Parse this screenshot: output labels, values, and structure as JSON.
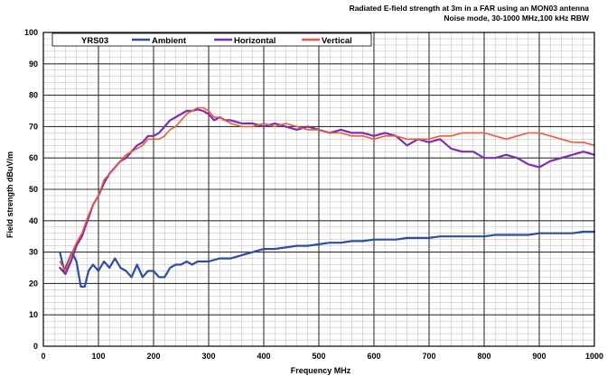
{
  "chart_data": {
    "type": "line",
    "title": "Radiated E-field strength at 3m in a FAR using an MON03 antenna",
    "subtitle": "Noise mode, 30-1000 MHz,100 kHz RBW",
    "xlabel": "Frequency MHz",
    "ylabel": "Field strength dBuV/m",
    "xlim": [
      0,
      1000
    ],
    "ylim": [
      0,
      100
    ],
    "x_ticks": [
      "0",
      "100",
      "200",
      "300",
      "400",
      "500",
      "600",
      "700",
      "800",
      "900",
      "1000"
    ],
    "y_ticks": [
      "0",
      "10",
      "20",
      "30",
      "40",
      "50",
      "60",
      "70",
      "80",
      "90",
      "100"
    ],
    "grid": true,
    "legend_position": "top",
    "legend_label": "YRS03",
    "series": [
      {
        "name": "Ambient",
        "color": "#2b4fa3",
        "x": [
          30,
          38,
          45,
          52,
          60,
          68,
          75,
          82,
          90,
          100,
          110,
          120,
          130,
          140,
          150,
          160,
          170,
          180,
          190,
          200,
          210,
          220,
          230,
          240,
          250,
          260,
          270,
          280,
          290,
          300,
          320,
          340,
          360,
          380,
          400,
          420,
          440,
          460,
          480,
          500,
          520,
          540,
          560,
          580,
          600,
          620,
          640,
          660,
          680,
          700,
          720,
          740,
          760,
          780,
          800,
          820,
          840,
          860,
          880,
          900,
          920,
          940,
          960,
          980,
          1000
        ],
        "y": [
          30,
          24,
          27,
          30,
          27,
          19,
          19,
          24,
          26,
          24,
          27,
          25,
          28,
          25,
          24,
          22,
          26,
          22,
          24,
          24,
          22,
          22,
          25,
          26,
          26,
          27,
          26,
          27,
          27,
          27,
          28,
          28,
          29,
          30,
          31,
          31,
          31.5,
          32,
          32,
          32.5,
          33,
          33,
          33.5,
          33.5,
          34,
          34,
          34,
          34.5,
          34.5,
          34.5,
          35,
          35,
          35,
          35,
          35,
          35.5,
          35.5,
          35.5,
          35.5,
          36,
          36,
          36,
          36,
          36.5,
          36.5
        ]
      },
      {
        "name": "Horizontal",
        "color": "#7b2fb0",
        "x": [
          30,
          40,
          50,
          60,
          70,
          80,
          90,
          100,
          110,
          120,
          130,
          140,
          150,
          160,
          170,
          180,
          190,
          200,
          210,
          220,
          230,
          240,
          250,
          260,
          270,
          280,
          290,
          300,
          310,
          320,
          330,
          340,
          360,
          380,
          400,
          420,
          440,
          460,
          480,
          500,
          520,
          540,
          560,
          580,
          600,
          620,
          640,
          660,
          680,
          700,
          720,
          740,
          760,
          780,
          800,
          820,
          840,
          860,
          880,
          900,
          920,
          940,
          960,
          980,
          1000
        ],
        "y": [
          25,
          23,
          27,
          32,
          35,
          40,
          45,
          48,
          52,
          55,
          57,
          59,
          60,
          62,
          64,
          65,
          67,
          67,
          68,
          70,
          72,
          73,
          74,
          75,
          75,
          75.5,
          75,
          74,
          72,
          73,
          72,
          72,
          71,
          71,
          70,
          71,
          70,
          69,
          70,
          69,
          68,
          69,
          68,
          68,
          67,
          68,
          67,
          64,
          66,
          65,
          66,
          63,
          62,
          62,
          60,
          60,
          61,
          60,
          58,
          57,
          59,
          60,
          61,
          62,
          61
        ]
      },
      {
        "name": "Vertical",
        "color": "#ee5a3a",
        "x": [
          30,
          40,
          50,
          60,
          70,
          80,
          90,
          100,
          110,
          120,
          130,
          140,
          150,
          160,
          170,
          180,
          190,
          200,
          210,
          220,
          230,
          240,
          250,
          260,
          270,
          280,
          290,
          300,
          310,
          320,
          330,
          340,
          360,
          380,
          400,
          420,
          440,
          460,
          480,
          500,
          520,
          540,
          560,
          580,
          600,
          620,
          640,
          660,
          680,
          700,
          720,
          740,
          760,
          780,
          800,
          820,
          840,
          860,
          880,
          900,
          920,
          940,
          960,
          980,
          1000
        ],
        "y": [
          27,
          24,
          29,
          33,
          36,
          41,
          45,
          48,
          53,
          55,
          57,
          59,
          61,
          62,
          63,
          64,
          66,
          66,
          66,
          67,
          69,
          70,
          72,
          74,
          75,
          76,
          76,
          75,
          73,
          73,
          72,
          71,
          70,
          70,
          71,
          70,
          71,
          70,
          69,
          69,
          68,
          68,
          67,
          67,
          66,
          67,
          67,
          66,
          66,
          66,
          67,
          67,
          68,
          68,
          68,
          67,
          66,
          67,
          68,
          68,
          67,
          66,
          65,
          65,
          64
        ]
      }
    ]
  }
}
